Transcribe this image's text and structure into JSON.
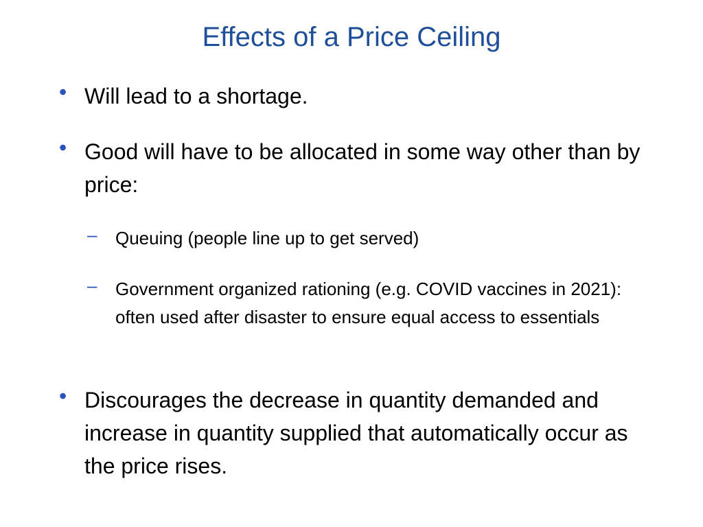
{
  "slide": {
    "title": "Effects of a Price Ceiling",
    "bullets": [
      {
        "text": "Will lead to a shortage."
      },
      {
        "text": "Good will have to be allocated in some way other than by price:"
      },
      {
        "text": "Discourages the decrease in quantity demanded and increase in quantity supplied that automatically occur as the price rises."
      }
    ],
    "sub_bullets": [
      {
        "text": "Queuing (people line up to get served)"
      },
      {
        "text": "Government organized rationing (e.g. COVID vaccines in 2021): often used after disaster to ensure equal access to essentials"
      }
    ],
    "bullet_glyph": "•",
    "dash_glyph": "–",
    "colors": {
      "title": "#1f4e9a",
      "bullet": "#2a52be",
      "text": "#000000"
    }
  }
}
